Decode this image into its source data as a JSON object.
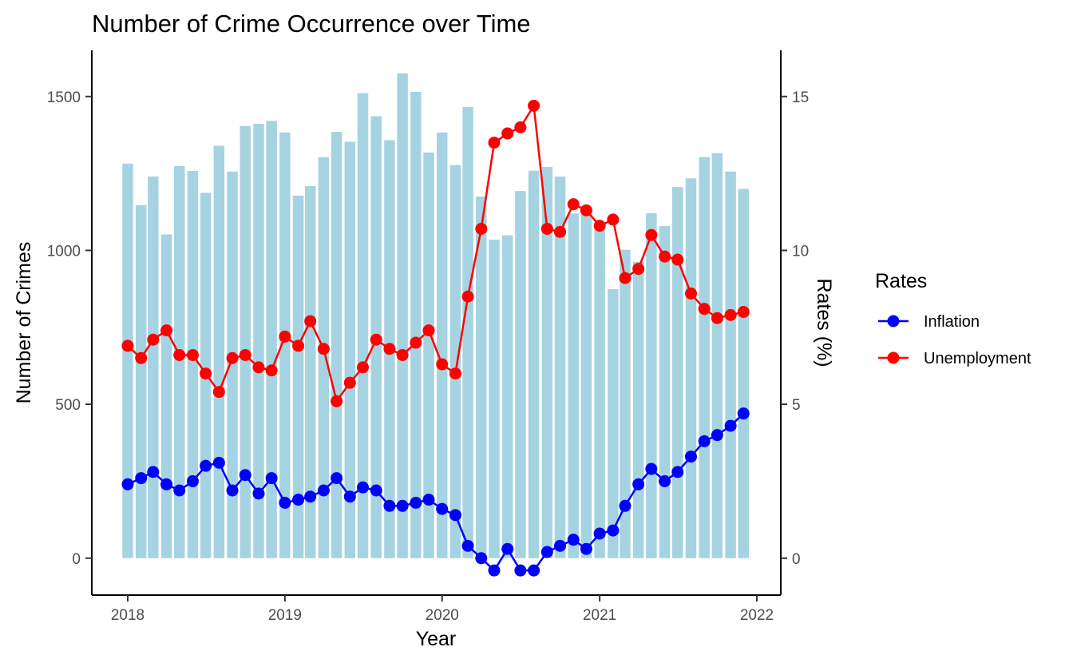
{
  "chart_data": {
    "type": "bar+line",
    "title": "Number of Crime Occurrence over Time",
    "xlabel": "Year",
    "ylabel": "Number of Crimes",
    "y2label": "Rates (%)",
    "x_ticks": [
      "2018",
      "2019",
      "2020",
      "2021",
      "2022"
    ],
    "y_ticks": [
      0,
      500,
      1000,
      1500
    ],
    "y2_ticks": [
      0,
      5,
      10,
      15
    ],
    "ylim": [
      -120,
      1650
    ],
    "y2lim": [
      -1.2,
      16.5
    ],
    "grid": false,
    "legend": {
      "title": "Rates",
      "position": "right",
      "entries": [
        "Inflation",
        "Unemployment"
      ]
    },
    "months": [
      "2018-01",
      "2018-02",
      "2018-03",
      "2018-04",
      "2018-05",
      "2018-06",
      "2018-07",
      "2018-08",
      "2018-09",
      "2018-10",
      "2018-11",
      "2018-12",
      "2019-01",
      "2019-02",
      "2019-03",
      "2019-04",
      "2019-05",
      "2019-06",
      "2019-07",
      "2019-08",
      "2019-09",
      "2019-10",
      "2019-11",
      "2019-12",
      "2020-01",
      "2020-02",
      "2020-03",
      "2020-04",
      "2020-05",
      "2020-06",
      "2020-07",
      "2020-08",
      "2020-09",
      "2020-10",
      "2020-11",
      "2020-12",
      "2021-01",
      "2021-02",
      "2021-03",
      "2021-04",
      "2021-05",
      "2021-06",
      "2021-07",
      "2021-08",
      "2021-09",
      "2021-10",
      "2021-11",
      "2021-12"
    ],
    "crimes": [
      1282,
      1147,
      1240,
      1052,
      1274,
      1258,
      1187,
      1340,
      1256,
      1404,
      1411,
      1421,
      1383,
      1178,
      1209,
      1303,
      1385,
      1353,
      1511,
      1436,
      1358,
      1575,
      1515,
      1318,
      1383,
      1277,
      1466,
      1175,
      1035,
      1049,
      1193,
      1259,
      1271,
      1240,
      1120,
      1122,
      1068,
      874,
      1002,
      963,
      1121,
      1079,
      1206,
      1234,
      1303,
      1316,
      1256,
      1200
    ],
    "series": [
      {
        "name": "Inflation",
        "color": "#0000ff",
        "values": [
          2.4,
          2.6,
          2.8,
          2.4,
          2.2,
          2.5,
          3.0,
          3.1,
          2.2,
          2.7,
          2.1,
          2.6,
          1.8,
          1.9,
          2.0,
          2.2,
          2.6,
          2.0,
          2.3,
          2.2,
          1.7,
          1.7,
          1.8,
          1.9,
          1.6,
          1.4,
          0.4,
          0.0,
          -0.4,
          0.3,
          -0.4,
          -0.4,
          0.2,
          0.4,
          0.6,
          0.3,
          0.8,
          0.9,
          1.7,
          2.4,
          2.9,
          2.5,
          2.8,
          3.3,
          3.8,
          4.0,
          4.3,
          4.7
        ]
      },
      {
        "name": "Unemployment",
        "color": "#ff0000",
        "values": [
          6.9,
          6.5,
          7.1,
          7.4,
          6.6,
          6.6,
          6.0,
          5.4,
          6.5,
          6.6,
          6.2,
          6.1,
          7.2,
          6.9,
          7.7,
          6.8,
          5.1,
          5.7,
          6.2,
          7.1,
          6.8,
          6.6,
          7.0,
          7.4,
          6.3,
          6.0,
          8.5,
          10.7,
          13.5,
          13.8,
          14.0,
          14.7,
          10.7,
          10.6,
          11.5,
          11.3,
          10.8,
          11.0,
          9.1,
          9.4,
          10.5,
          9.8,
          9.7,
          8.6,
          8.1,
          7.8,
          7.9,
          8.0
        ]
      }
    ],
    "bar_color": "#a6d3e2"
  }
}
